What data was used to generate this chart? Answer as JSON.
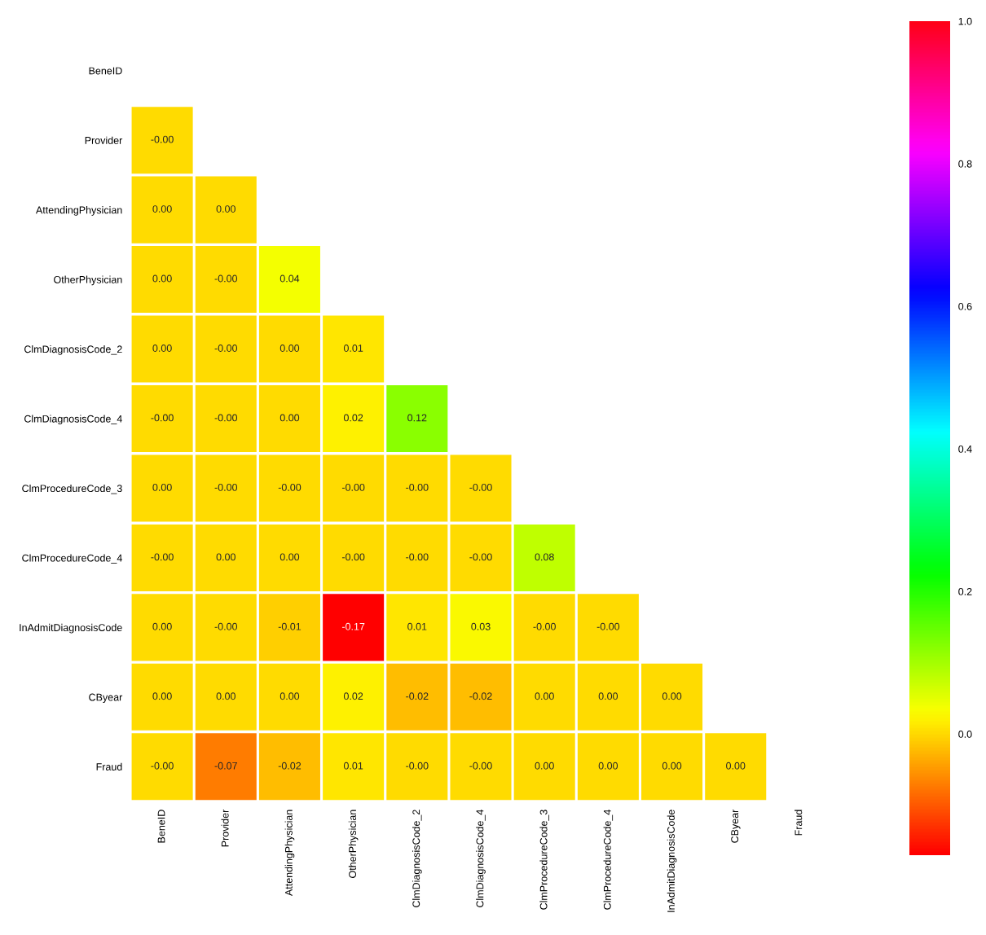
{
  "chart_data": {
    "type": "heatmap",
    "categories": [
      "BeneID",
      "Provider",
      "AttendingPhysician",
      "OtherPhysician",
      "ClmDiagnosisCode_2",
      "ClmDiagnosisCode_4",
      "ClmProcedureCode_3",
      "ClmProcedureCode_4",
      "InAdmitDiagnosisCode",
      "CByear",
      "Fraud"
    ],
    "y_categories": [
      "BeneID",
      "Provider",
      "AttendingPhysician",
      "OtherPhysician",
      "ClmDiagnosisCode_2",
      "ClmDiagnosisCode_4",
      "ClmProcedureCode_3",
      "ClmProcedureCode_4",
      "InAdmitDiagnosisCode",
      "CByear",
      "Fraud"
    ],
    "cells": [
      [
        null,
        null,
        null,
        null,
        null,
        null,
        null,
        null,
        null,
        null,
        null
      ],
      [
        0,
        null,
        null,
        null,
        null,
        null,
        null,
        null,
        null,
        null,
        null
      ],
      [
        0,
        0,
        null,
        null,
        null,
        null,
        null,
        null,
        null,
        null,
        null
      ],
      [
        0,
        0,
        0.04,
        null,
        null,
        null,
        null,
        null,
        null,
        null,
        null
      ],
      [
        0,
        0,
        0,
        0.01,
        null,
        null,
        null,
        null,
        null,
        null,
        null
      ],
      [
        0,
        0,
        0,
        0.02,
        0.12,
        null,
        null,
        null,
        null,
        null,
        null
      ],
      [
        0,
        0,
        0,
        0,
        0,
        0,
        null,
        null,
        null,
        null,
        null
      ],
      [
        0,
        0,
        0,
        0,
        0,
        0,
        0.08,
        null,
        null,
        null,
        null
      ],
      [
        0,
        0,
        -0.01,
        -0.17,
        0.01,
        0.03,
        0,
        0,
        null,
        null,
        null
      ],
      [
        0,
        0,
        0,
        0.02,
        -0.02,
        -0.02,
        0,
        0,
        0,
        null,
        null
      ],
      [
        0,
        -0.07,
        -0.02,
        0.01,
        0,
        0,
        0,
        0,
        0,
        0,
        null
      ]
    ],
    "cell_labels": [
      [
        null,
        null,
        null,
        null,
        null,
        null,
        null,
        null,
        null,
        null,
        null
      ],
      [
        "-0.00",
        null,
        null,
        null,
        null,
        null,
        null,
        null,
        null,
        null,
        null
      ],
      [
        "0.00",
        "0.00",
        null,
        null,
        null,
        null,
        null,
        null,
        null,
        null,
        null
      ],
      [
        "0.00",
        "-0.00",
        "0.04",
        null,
        null,
        null,
        null,
        null,
        null,
        null,
        null
      ],
      [
        "0.00",
        "-0.00",
        "0.00",
        "0.01",
        null,
        null,
        null,
        null,
        null,
        null,
        null
      ],
      [
        "-0.00",
        "-0.00",
        "0.00",
        "0.02",
        "0.12",
        null,
        null,
        null,
        null,
        null,
        null
      ],
      [
        "0.00",
        "-0.00",
        "-0.00",
        "-0.00",
        "-0.00",
        "-0.00",
        null,
        null,
        null,
        null,
        null
      ],
      [
        "-0.00",
        "0.00",
        "0.00",
        "-0.00",
        "-0.00",
        "-0.00",
        "0.08",
        null,
        null,
        null,
        null
      ],
      [
        "0.00",
        "-0.00",
        "-0.01",
        "-0.17",
        "0.01",
        "0.03",
        "-0.00",
        "-0.00",
        null,
        null,
        null
      ],
      [
        "0.00",
        "0.00",
        "0.00",
        "0.02",
        "-0.02",
        "-0.02",
        "0.00",
        "0.00",
        "0.00",
        null,
        null
      ],
      [
        "-0.00",
        "-0.07",
        "-0.02",
        "0.01",
        "-0.00",
        "-0.00",
        "0.00",
        "0.00",
        "0.00",
        "0.00",
        null
      ]
    ],
    "clim": [
      -0.17,
      1.0
    ],
    "cticks": [
      {
        "value": 0.0,
        "label": "0.0"
      },
      {
        "value": 0.2,
        "label": "0.2"
      },
      {
        "value": 0.4,
        "label": "0.4"
      },
      {
        "value": 0.6,
        "label": "0.6"
      },
      {
        "value": 0.8,
        "label": "0.8"
      },
      {
        "value": 1.0,
        "label": "1.0"
      }
    ]
  }
}
